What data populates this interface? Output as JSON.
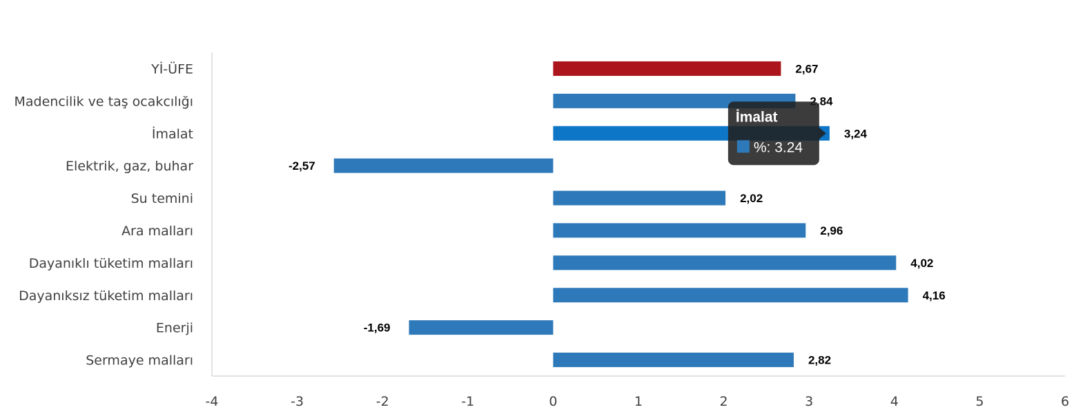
{
  "chart_data": {
    "type": "bar",
    "orientation": "horizontal",
    "categories": [
      "Yİ-ÜFE",
      "Madencilik ve taş ocakcılığı",
      "İmalat",
      "Elektrik, gaz, buhar",
      "Su temini",
      "Ara malları",
      "Dayanıklı tüketim malları",
      "Dayanıksız tüketim malları",
      "Enerji",
      "Sermaye malları"
    ],
    "values": [
      2.67,
      2.84,
      3.24,
      -2.57,
      2.02,
      2.96,
      4.02,
      4.16,
      -1.69,
      2.82
    ],
    "value_labels": [
      "2,67",
      "2,84",
      "3,24",
      "-2,57",
      "2,02",
      "2,96",
      "4,02",
      "4,16",
      "-1,69",
      "2,82"
    ],
    "xlim": [
      -4,
      6
    ],
    "x_ticks": [
      "-4",
      "-3",
      "-2",
      "-1",
      "0",
      "1",
      "2",
      "3",
      "4",
      "5",
      "6"
    ],
    "grid": false,
    "colors": {
      "bar": "#2e79b9",
      "highlight_bar": "#ab151b",
      "hover_bar": "#0d76c7",
      "axis": "#d9d9d9",
      "tooltip_bg": "#212121"
    },
    "highlight_index": 0,
    "hover_index": 2,
    "tooltip": {
      "title": "İmalat",
      "text": "%: 3.24"
    }
  }
}
